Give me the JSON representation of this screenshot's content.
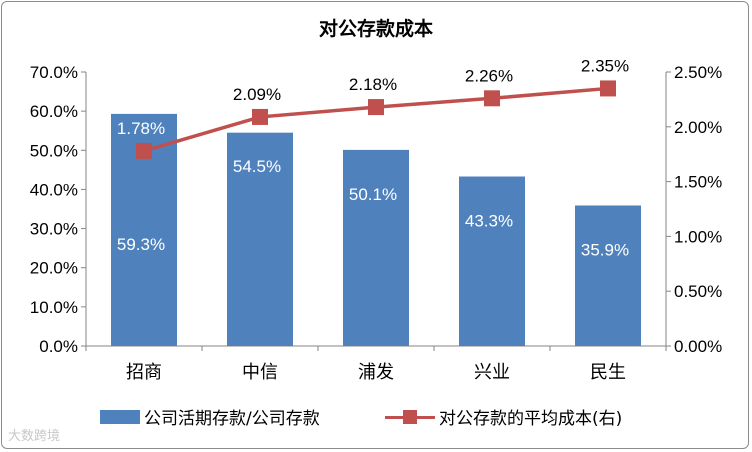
{
  "chart_data": {
    "type": "bar+line",
    "title": "对公存款成本",
    "categories": [
      "招商",
      "中信",
      "浦发",
      "兴业",
      "民生"
    ],
    "series": [
      {
        "name": "公司活期存款/公司存款",
        "type": "bar",
        "axis": "left",
        "values": [
          59.3,
          54.5,
          50.1,
          43.3,
          35.9
        ],
        "labels": [
          "59.3%",
          "54.5%",
          "50.1%",
          "43.3%",
          "35.9%"
        ],
        "color": "#4f81bd"
      },
      {
        "name": "对公存款的平均成本(右)",
        "type": "line",
        "axis": "right",
        "values": [
          1.78,
          2.09,
          2.18,
          2.26,
          2.35
        ],
        "labels": [
          "1.78%",
          "2.09%",
          "2.18%",
          "2.26%",
          "2.35%"
        ],
        "color": "#c0504d"
      }
    ],
    "y_left": {
      "min": 0,
      "max": 70,
      "ticks": [
        "0.0%",
        "10.0%",
        "20.0%",
        "30.0%",
        "40.0%",
        "50.0%",
        "60.0%",
        "70.0%"
      ]
    },
    "y_right": {
      "min": 0,
      "max": 2.5,
      "ticks": [
        "0.00%",
        "0.50%",
        "1.00%",
        "1.50%",
        "2.00%",
        "2.50%"
      ]
    },
    "grid": false,
    "legend_position": "bottom"
  },
  "legend": {
    "bar_label": "公司活期存款/公司存款",
    "line_label": "对公存款的平均成本(右)"
  },
  "watermark": "大数跨境"
}
